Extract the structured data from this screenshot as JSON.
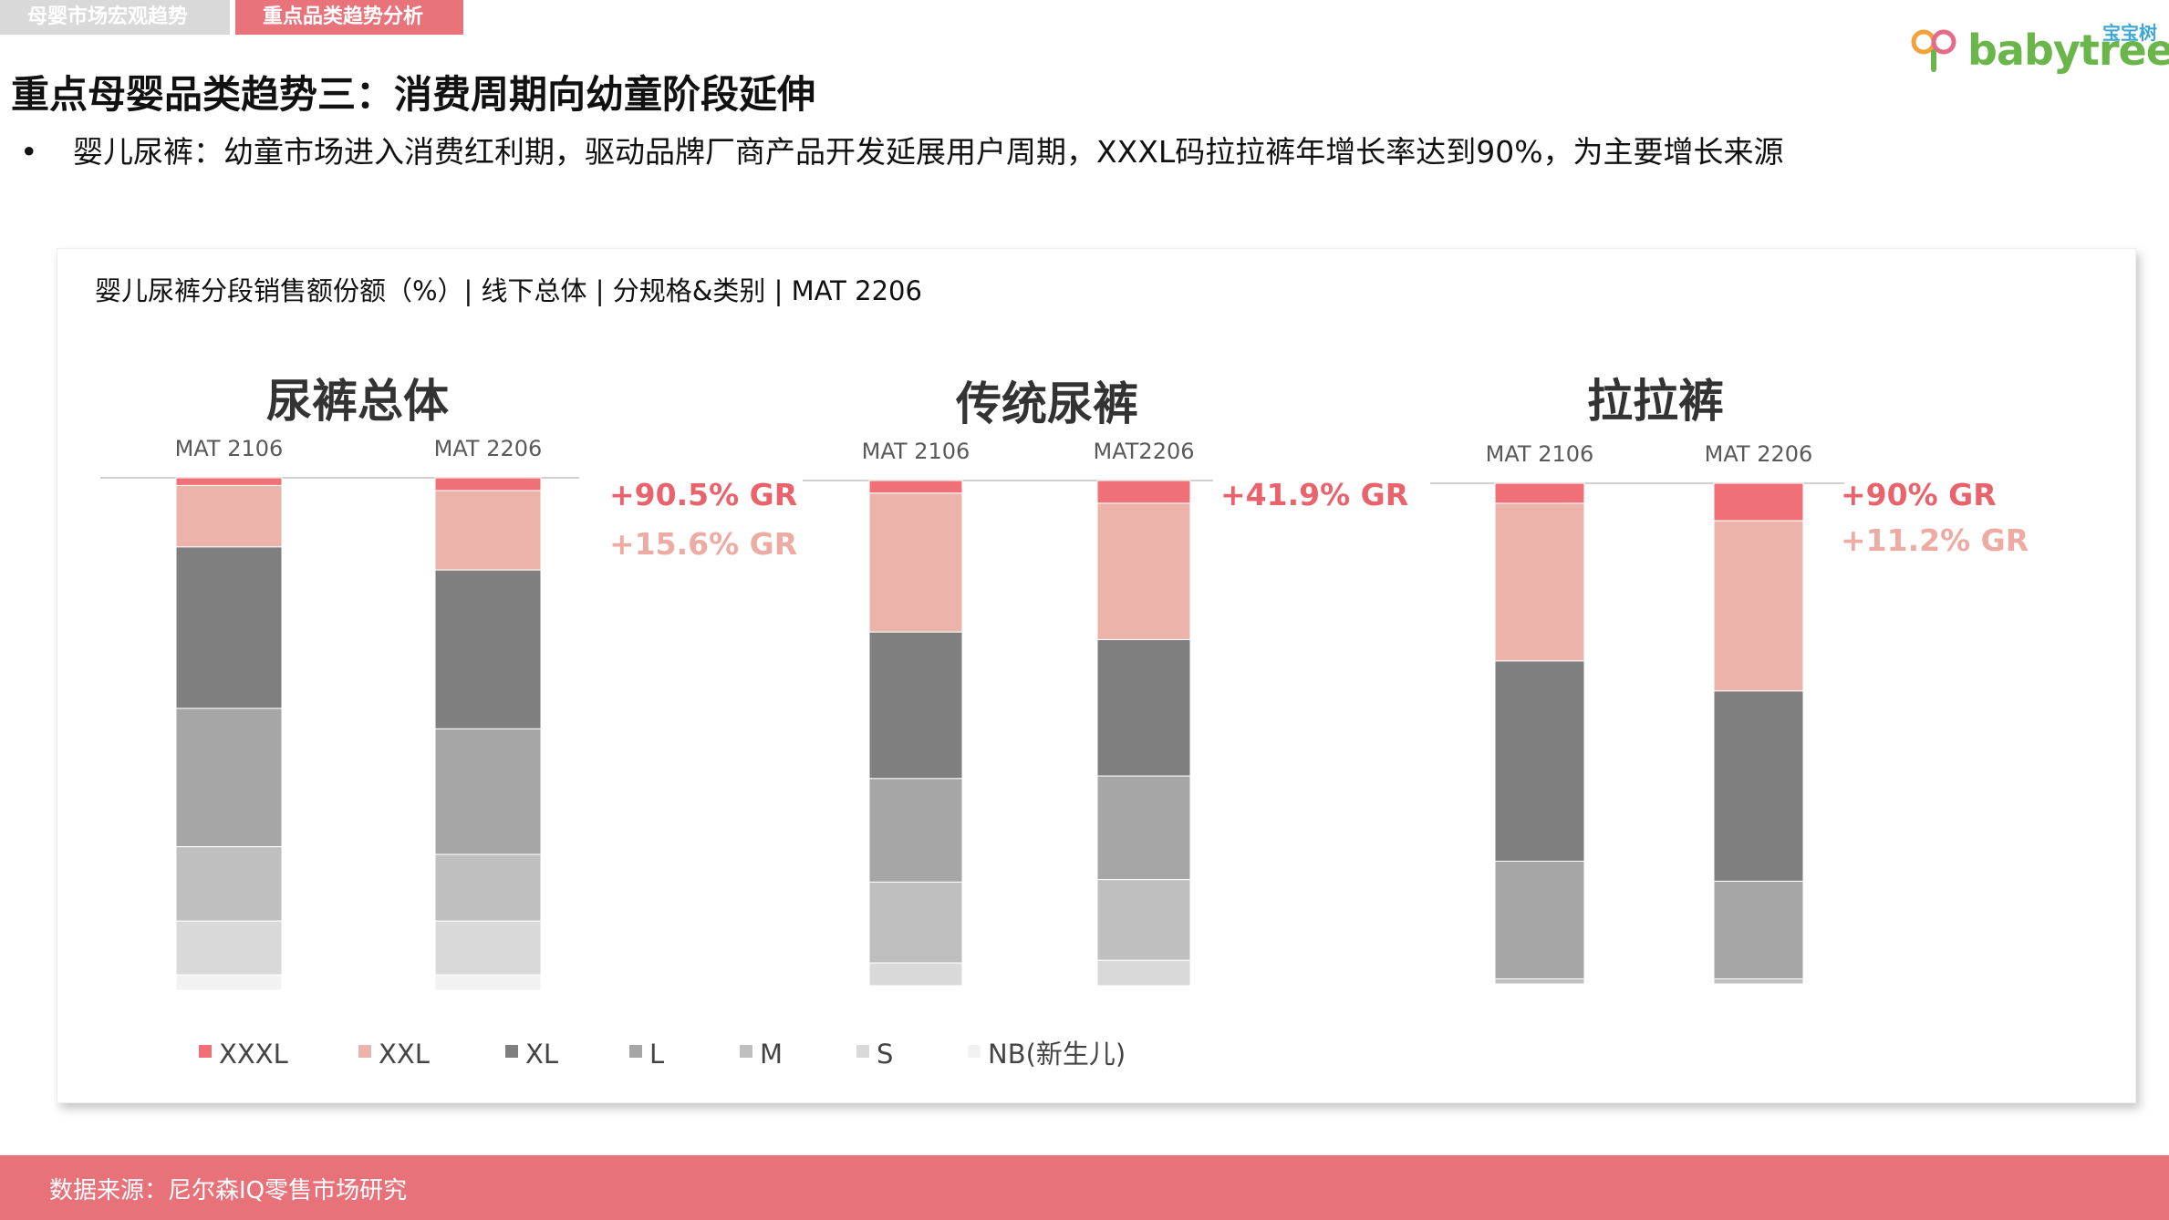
{
  "tabs": [
    {
      "label": "母婴市场宏观趋势"
    },
    {
      "label": "重点品类趋势分析"
    }
  ],
  "logo": {
    "brand": "babytree",
    "cn": "宝宝树"
  },
  "title": "重点母婴品类趋势三：消费周期向幼童阶段延伸",
  "bullet": "婴儿尿裤：幼童市场进入消费红利期，驱动品牌厂商产品开发延展用户周期，XXXL码拉拉裤年增长率达到90%，为主要增长来源",
  "bullet_marker": "•",
  "card_subtitle": "婴儿尿裤分段销售额份额（%）| 线下总体 | 分规格&类别 | MAT 2206",
  "footer": "数据来源：尼尔森IQ零售市场研究",
  "colors": {
    "accent": "#e8737a",
    "XXXL": "#f07078",
    "XXL": "#ecb3ab",
    "XL": "#7f7f7f",
    "L": "#a6a6a6",
    "M": "#bfbfbf",
    "S": "#d9d9d9",
    "NB": "#f2f2f2",
    "gr_strong": "#e9636c",
    "gr_light": "#eeaba3"
  },
  "chart_data": [
    {
      "type": "bar",
      "stacked": true,
      "title": "尿裤总体",
      "categories": [
        "MAT 2106",
        "MAT 2206"
      ],
      "ylim": [
        0,
        100
      ],
      "series": [
        {
          "name": "XXXL",
          "values": [
            1.5,
            2.5
          ]
        },
        {
          "name": "XXL",
          "values": [
            12,
            15.5
          ]
        },
        {
          "name": "XL",
          "values": [
            31.5,
            31
          ]
        },
        {
          "name": "L",
          "values": [
            27,
            24.5
          ]
        },
        {
          "name": "M",
          "values": [
            14.5,
            13
          ]
        },
        {
          "name": "S",
          "values": [
            10.5,
            10.5
          ]
        },
        {
          "name": "NB(新生儿)",
          "values": [
            3,
            3
          ]
        }
      ],
      "annotations": [
        "+90.5% GR",
        "+15.6% GR"
      ]
    },
    {
      "type": "bar",
      "stacked": true,
      "title": "传统尿裤",
      "categories": [
        "MAT 2106",
        "MAT2206"
      ],
      "ylim": [
        0,
        100
      ],
      "series": [
        {
          "name": "XXXL",
          "values": [
            2.5,
            4.5
          ]
        },
        {
          "name": "XXL",
          "values": [
            27.5,
            27
          ]
        },
        {
          "name": "XL",
          "values": [
            29,
            27
          ]
        },
        {
          "name": "L",
          "values": [
            20.5,
            20.5
          ]
        },
        {
          "name": "M",
          "values": [
            16,
            16
          ]
        },
        {
          "name": "S",
          "values": [
            4.5,
            5
          ]
        },
        {
          "name": "NB(新生儿)",
          "values": [
            0,
            0
          ]
        }
      ],
      "annotations": [
        "+41.9% GR"
      ]
    },
    {
      "type": "bar",
      "stacked": true,
      "title": "拉拉裤",
      "categories": [
        "MAT 2106",
        "MAT 2206"
      ],
      "ylim": [
        0,
        100
      ],
      "series": [
        {
          "name": "XXXL",
          "values": [
            4,
            7.5
          ]
        },
        {
          "name": "XXL",
          "values": [
            31.5,
            34
          ]
        },
        {
          "name": "XL",
          "values": [
            40,
            38
          ]
        },
        {
          "name": "L",
          "values": [
            23.5,
            19.5
          ]
        },
        {
          "name": "M",
          "values": [
            1,
            1
          ]
        },
        {
          "name": "S",
          "values": [
            0,
            0
          ]
        },
        {
          "name": "NB(新生儿)",
          "values": [
            0,
            0
          ]
        }
      ],
      "annotations": [
        "+90% GR",
        "+11.2% GR"
      ]
    }
  ],
  "legend": [
    "XXXL",
    "XXL",
    "XL",
    "L",
    "M",
    "S",
    "NB(新生儿)"
  ]
}
